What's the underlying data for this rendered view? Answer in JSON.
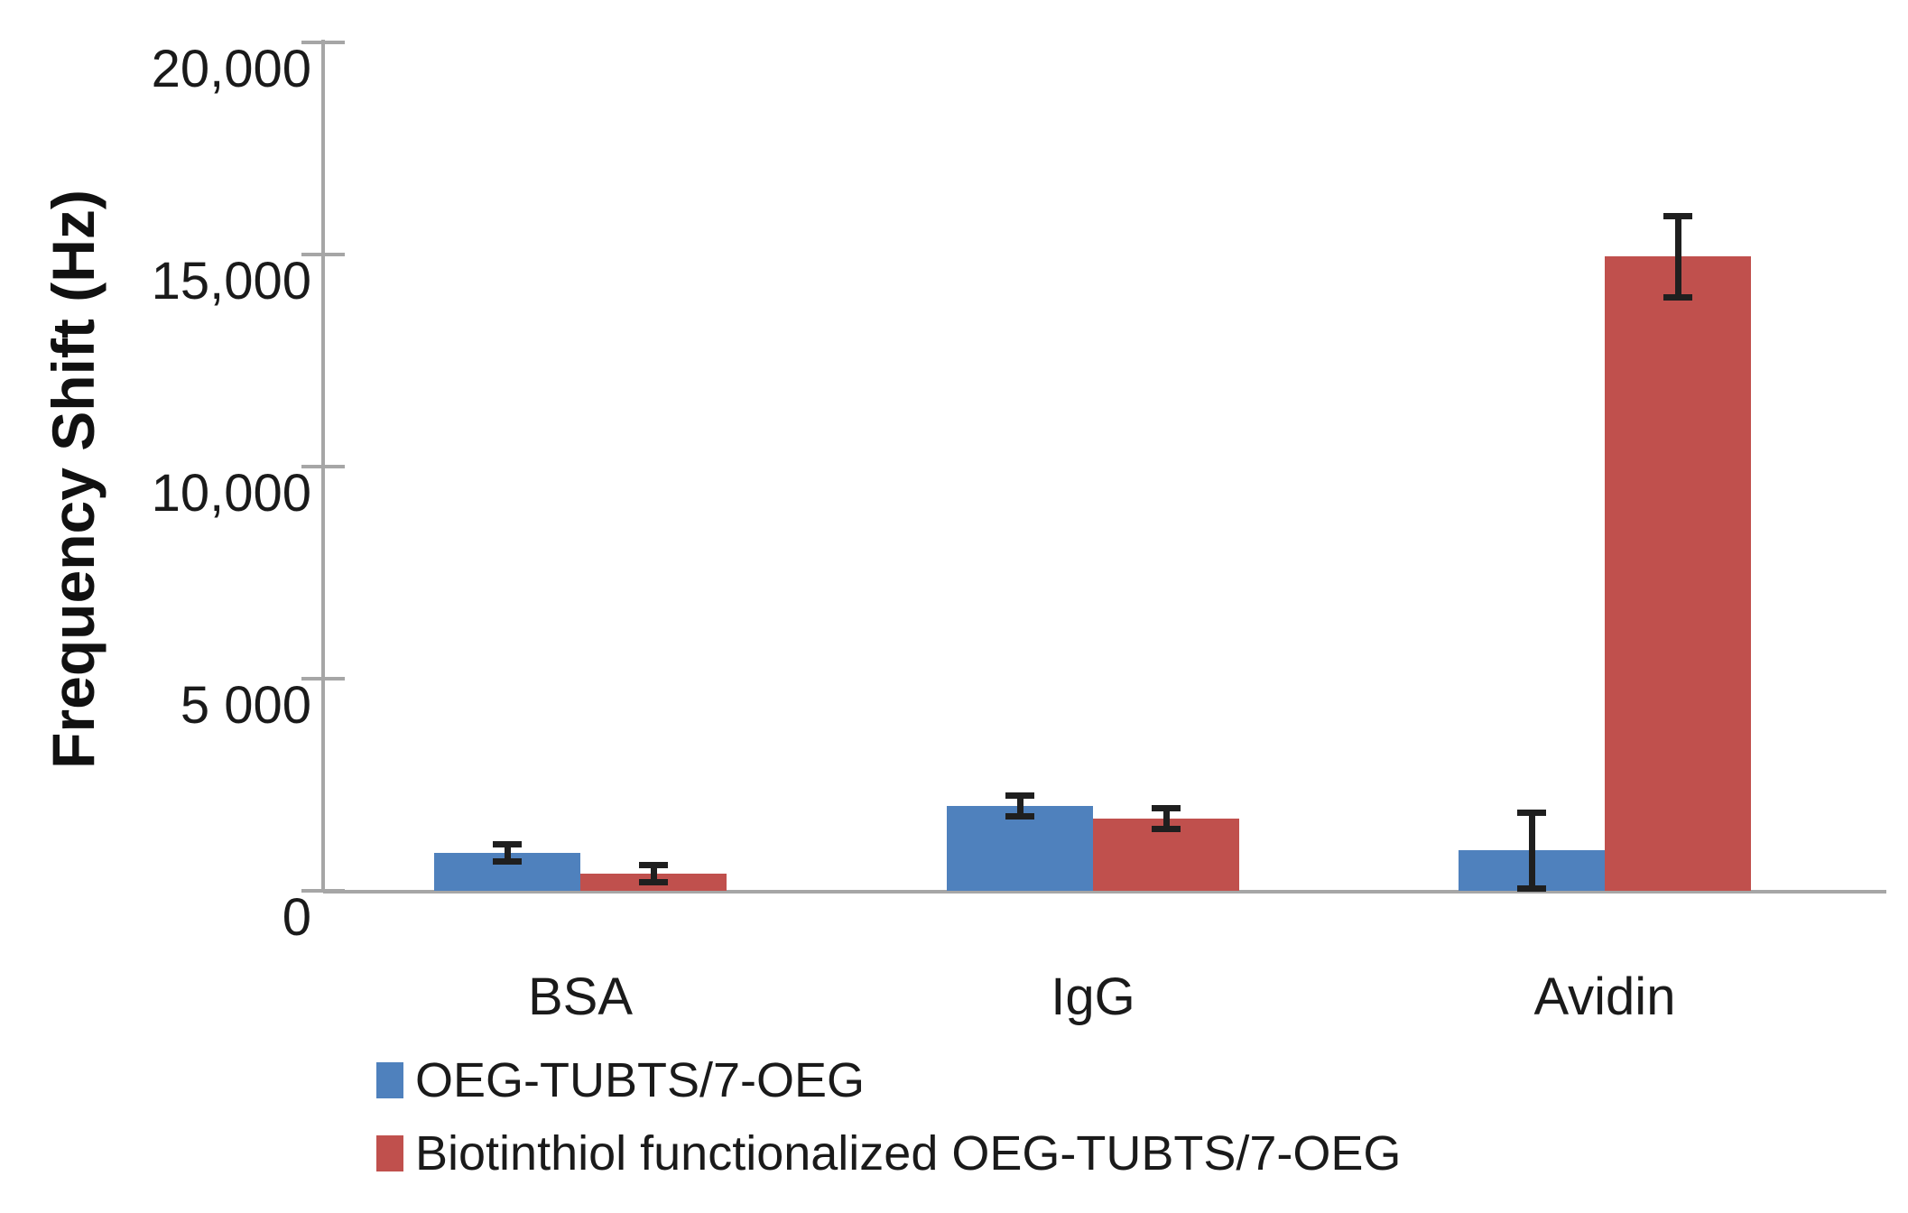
{
  "colors": {
    "background": "#ffffff",
    "axis": "#a6a6a6",
    "error_bar": "#1f1f1f",
    "text": "#1a1a1a",
    "series_blue": "#4F81BD",
    "series_red": "#C0504D"
  },
  "chart_data": {
    "type": "bar",
    "title": "",
    "xlabel": "",
    "ylabel": "Frequency Shift (Hz)",
    "categories": [
      "BSA",
      "IgG",
      "Avidin"
    ],
    "series": [
      {
        "name": "OEG-TUBTS/7-OEG",
        "color": "#4F81BD",
        "values": [
          900,
          2000,
          950
        ],
        "errors": [
          200,
          250,
          900
        ]
      },
      {
        "name": "Biotinthiol functionalized OEG-TUBTS/7-OEG",
        "color": "#C0504D",
        "values": [
          400,
          1700,
          14950
        ],
        "errors": [
          200,
          250,
          950
        ]
      }
    ],
    "ylim": [
      0,
      20000
    ],
    "y_ticks": [
      0,
      5000,
      10000,
      15000,
      20000
    ],
    "y_tick_labels": [
      "0",
      "5 000",
      "10,000",
      "15,000",
      "20,000"
    ],
    "grid": false,
    "error_bars": true,
    "legend_position": "bottom-left"
  }
}
